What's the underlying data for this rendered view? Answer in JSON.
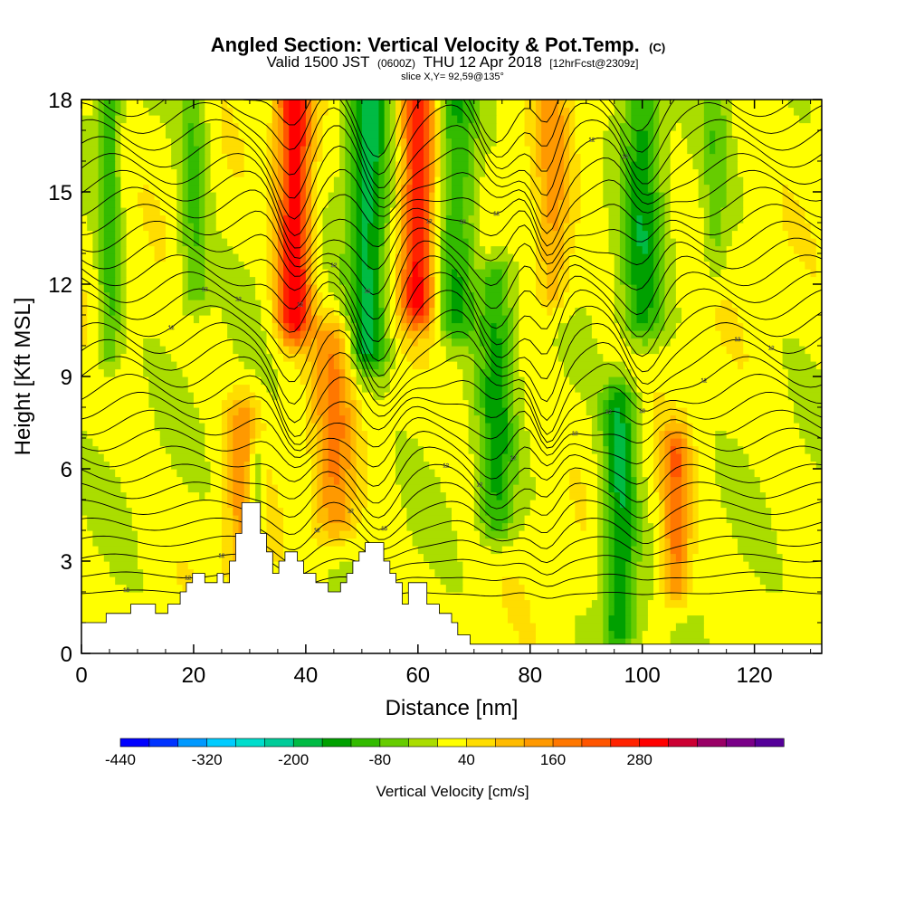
{
  "title": {
    "main": "Angled Section: Vertical Velocity & Pot.Temp.",
    "main_suffix": "(C)",
    "valid_prefix": "Valid 1500 JST",
    "valid_utc": "(0600Z)",
    "valid_date": "THU 12 Apr 2018",
    "forecast": "[12hrFcst@2309z]",
    "slice": "slice X,Y= 92,59@135°"
  },
  "chart_data": {
    "type": "heatmap",
    "title": "Angled Section: Vertical Velocity & Pot.Temp.",
    "xlabel": "Distance [nm]",
    "ylabel": "Height [Kft MSL]",
    "xlim": [
      0,
      132
    ],
    "ylim": [
      0,
      18
    ],
    "x_ticks": [
      0,
      20,
      40,
      60,
      80,
      100,
      120
    ],
    "y_ticks": [
      0,
      3,
      6,
      9,
      12,
      15,
      18
    ],
    "field": "Vertical Velocity",
    "field_units": "cm/s",
    "contour_field": "Potential Temperature",
    "updraft_columns": [
      {
        "x": 29,
        "w": 3,
        "peak": 130,
        "bottom": 3,
        "top": 7.5
      },
      {
        "x": 38,
        "w": 3,
        "peak": 300,
        "bottom": 11,
        "top": 18
      },
      {
        "x": 45,
        "w": 3.5,
        "peak": 140,
        "bottom": 4.5,
        "top": 10
      },
      {
        "x": 60,
        "w": 3,
        "peak": 270,
        "bottom": 11.5,
        "top": 18
      },
      {
        "x": 84,
        "w": 3,
        "peak": 110,
        "bottom": 12,
        "top": 18
      },
      {
        "x": 106,
        "w": 2.5,
        "peak": 170,
        "bottom": 2.5,
        "top": 6.5
      }
    ],
    "downdraft_columns": [
      {
        "x": 5,
        "w": 2,
        "peak": -110,
        "bottom": 10,
        "top": 18
      },
      {
        "x": 20,
        "w": 2.5,
        "peak": -100,
        "bottom": 12,
        "top": 18
      },
      {
        "x": 31,
        "w": 1.5,
        "peak": -130,
        "bottom": 2.5,
        "top": 6
      },
      {
        "x": 51,
        "w": 3.5,
        "peak": -190,
        "bottom": 10,
        "top": 18
      },
      {
        "x": 67,
        "w": 3.5,
        "peak": -140,
        "bottom": 11,
        "top": 18
      },
      {
        "x": 74,
        "w": 3,
        "peak": -140,
        "bottom": 4.5,
        "top": 12
      },
      {
        "x": 96,
        "w": 3,
        "peak": -180,
        "bottom": 1,
        "top": 8
      },
      {
        "x": 100,
        "w": 3.5,
        "peak": -150,
        "bottom": 11,
        "top": 18
      },
      {
        "x": 113,
        "w": 2,
        "peak": -70,
        "bottom": 13,
        "top": 18
      }
    ],
    "terrain_profile": [
      [
        0,
        1
      ],
      [
        4.4,
        1
      ],
      [
        4.4,
        1.3
      ],
      [
        8.8,
        1.3
      ],
      [
        8.8,
        1.6
      ],
      [
        13.2,
        1.6
      ],
      [
        13.2,
        1.3
      ],
      [
        15.4,
        1.3
      ],
      [
        15.4,
        1.6
      ],
      [
        17.6,
        1.6
      ],
      [
        17.6,
        2
      ],
      [
        18.7,
        2
      ],
      [
        18.7,
        2.3
      ],
      [
        19.8,
        2.3
      ],
      [
        19.8,
        2.6
      ],
      [
        22,
        2.6
      ],
      [
        22,
        2.3
      ],
      [
        24.2,
        2.3
      ],
      [
        24.2,
        2.6
      ],
      [
        25.3,
        2.6
      ],
      [
        25.3,
        2.3
      ],
      [
        26.4,
        2.3
      ],
      [
        26.4,
        3
      ],
      [
        27.5,
        3
      ],
      [
        27.5,
        3.9
      ],
      [
        28.6,
        3.9
      ],
      [
        28.6,
        4.9
      ],
      [
        31.9,
        4.9
      ],
      [
        31.9,
        3.9
      ],
      [
        33,
        3.9
      ],
      [
        33,
        3.3
      ],
      [
        34.1,
        3.3
      ],
      [
        34.1,
        2.6
      ],
      [
        35.2,
        2.6
      ],
      [
        35.2,
        3
      ],
      [
        36.3,
        3
      ],
      [
        36.3,
        3.3
      ],
      [
        38.5,
        3.3
      ],
      [
        38.5,
        3
      ],
      [
        39.6,
        3
      ],
      [
        39.6,
        2.6
      ],
      [
        41.8,
        2.6
      ],
      [
        41.8,
        2.3
      ],
      [
        44,
        2.3
      ],
      [
        44,
        2
      ],
      [
        46.2,
        2
      ],
      [
        46.2,
        2.3
      ],
      [
        47.3,
        2.3
      ],
      [
        47.3,
        2.6
      ],
      [
        48.4,
        2.6
      ],
      [
        48.4,
        3
      ],
      [
        49.5,
        3
      ],
      [
        49.5,
        3.3
      ],
      [
        50.6,
        3.3
      ],
      [
        50.6,
        3.6
      ],
      [
        53.9,
        3.6
      ],
      [
        53.9,
        3
      ],
      [
        55,
        3
      ],
      [
        55,
        2.6
      ],
      [
        56.1,
        2.6
      ],
      [
        56.1,
        2.3
      ],
      [
        57.2,
        2.3
      ],
      [
        57.2,
        1.6
      ],
      [
        58.3,
        1.6
      ],
      [
        58.3,
        2.3
      ],
      [
        61.6,
        2.3
      ],
      [
        61.6,
        1.6
      ],
      [
        63.8,
        1.6
      ],
      [
        63.8,
        1.3
      ],
      [
        66,
        1.3
      ],
      [
        66,
        1
      ],
      [
        67.1,
        1
      ],
      [
        67.1,
        0.6
      ],
      [
        69.3,
        0.6
      ],
      [
        69.3,
        0.3
      ],
      [
        132,
        0.3
      ]
    ],
    "contour_labels_shown": [
      "18",
      "15",
      "15",
      "12",
      "12",
      "12",
      "12",
      "12",
      "12",
      "12",
      "12",
      "12",
      "12",
      "12",
      "12",
      "12",
      "12",
      "12",
      "12",
      "12",
      "12",
      "12",
      "12",
      "12",
      "12",
      "12",
      "12",
      "12",
      "12"
    ]
  },
  "colorbar": {
    "label": "Vertical Velocity [cm/s]",
    "tick_labels": [
      "-440",
      "-320",
      "-200",
      "-80",
      "40",
      "160",
      "280"
    ],
    "colors": [
      "#0000ff",
      "#0033ff",
      "#0099ff",
      "#00ccff",
      "#00ddcc",
      "#00cc99",
      "#00bb44",
      "#00a000",
      "#33bb00",
      "#66cc00",
      "#aadd00",
      "#ffff00",
      "#ffdd00",
      "#ffbb00",
      "#ff9900",
      "#ff7700",
      "#ff5500",
      "#ff2200",
      "#ff0000",
      "#cc0033",
      "#990066",
      "#7a0088",
      "#550099"
    ]
  }
}
